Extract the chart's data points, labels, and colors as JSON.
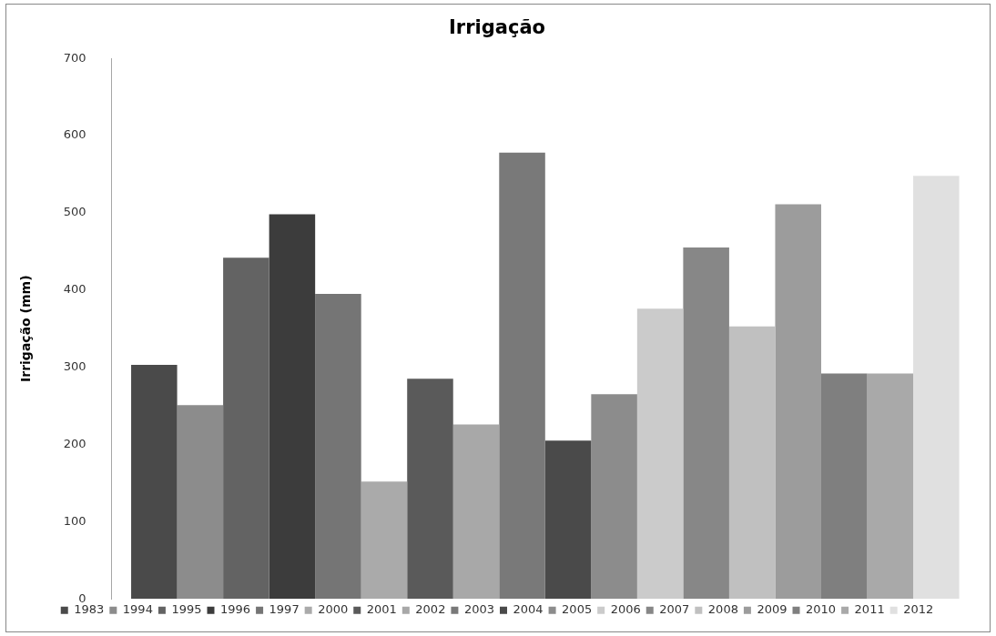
{
  "chart_data": {
    "type": "bar",
    "title": "Irrigação",
    "ylabel": "Irrigação (mm)",
    "categories": [
      null
    ],
    "series": [
      {
        "name": "1983",
        "color": "#4a4a4a",
        "values": [
          303
        ]
      },
      {
        "name": "1994",
        "color": "#8c8c8c",
        "values": [
          251
        ]
      },
      {
        "name": "1995",
        "color": "#636363",
        "values": [
          442
        ]
      },
      {
        "name": "1996",
        "color": "#3c3c3c",
        "values": [
          498
        ]
      },
      {
        "name": "1997",
        "color": "#757575",
        "values": [
          395
        ]
      },
      {
        "name": "2000",
        "color": "#aaaaaa",
        "values": [
          152
        ]
      },
      {
        "name": "2001",
        "color": "#5a5a5a",
        "values": [
          285
        ]
      },
      {
        "name": "2002",
        "color": "#a8a8a8",
        "values": [
          226
        ]
      },
      {
        "name": "2003",
        "color": "#797979",
        "values": [
          578
        ]
      },
      {
        "name": "2004",
        "color": "#4a4a4a",
        "values": [
          205
        ]
      },
      {
        "name": "2005",
        "color": "#8c8c8c",
        "values": [
          265
        ]
      },
      {
        "name": "2006",
        "color": "#cbcbcb",
        "values": [
          376
        ]
      },
      {
        "name": "2007",
        "color": "#878787",
        "values": [
          455
        ]
      },
      {
        "name": "2008",
        "color": "#c0c0c0",
        "values": [
          353
        ]
      },
      {
        "name": "2009",
        "color": "#9c9c9c",
        "values": [
          511
        ]
      },
      {
        "name": "2010",
        "color": "#7f7f7f",
        "values": [
          292
        ]
      },
      {
        "name": "2011",
        "color": "#a9a9a9",
        "values": [
          292
        ]
      },
      {
        "name": "2012",
        "color": "#e0e0e0",
        "values": [
          548
        ]
      }
    ],
    "ylim": [
      0,
      700
    ],
    "yticks": [
      0,
      100,
      200,
      300,
      400,
      500,
      600,
      700
    ],
    "grid": false,
    "legend": "bottom"
  }
}
